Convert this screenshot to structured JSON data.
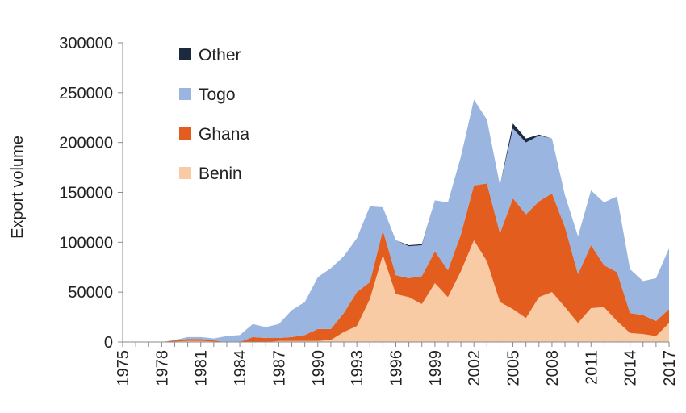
{
  "chart_data": {
    "type": "area",
    "stacked": true,
    "title": "",
    "xlabel": "",
    "ylabel": "Export volume",
    "ylim": [
      0,
      300000
    ],
    "yticks": [
      "0",
      "50000",
      "100000",
      "150000",
      "200000",
      "250000",
      "300000"
    ],
    "xticks": [
      "1975",
      "1978",
      "1981",
      "1984",
      "1987",
      "1990",
      "1993",
      "1996",
      "1999",
      "2002",
      "2005",
      "2008",
      "2011",
      "2014",
      "2017"
    ],
    "legend_position": "top-left",
    "x": [
      1975,
      1976,
      1977,
      1978,
      1979,
      1980,
      1981,
      1982,
      1983,
      1984,
      1985,
      1986,
      1987,
      1988,
      1989,
      1990,
      1991,
      1992,
      1993,
      1994,
      1995,
      1996,
      1997,
      1998,
      1999,
      2000,
      2001,
      2002,
      2003,
      2004,
      2005,
      2006,
      2007,
      2008,
      2009,
      2010,
      2011,
      2012,
      2013,
      2014,
      2015,
      2016,
      2017
    ],
    "series": [
      {
        "name": "Benin",
        "color": "#f9cba5",
        "values": [
          0,
          0,
          0,
          0,
          500,
          1000,
          1000,
          500,
          0,
          0,
          0,
          0,
          1000,
          1000,
          1000,
          1000,
          2000,
          10000,
          16000,
          43000,
          87000,
          48000,
          45000,
          38000,
          59000,
          45000,
          71000,
          102000,
          81000,
          40000,
          33000,
          24000,
          45000,
          50000,
          35000,
          19000,
          34000,
          35000,
          21000,
          9000,
          8000,
          6000,
          19000
        ]
      },
      {
        "name": "Ghana",
        "color": "#e35e1e",
        "values": [
          0,
          0,
          0,
          0,
          1000,
          2000,
          2000,
          1000,
          0,
          0,
          5000,
          4000,
          3000,
          4000,
          6000,
          12000,
          11000,
          19000,
          34000,
          17000,
          25000,
          19000,
          19000,
          28000,
          32000,
          27000,
          37000,
          55000,
          78000,
          69000,
          111000,
          104000,
          96000,
          99000,
          80000,
          49000,
          63000,
          42000,
          49000,
          20000,
          19000,
          15000,
          14000
        ]
      },
      {
        "name": "Togo",
        "color": "#9ab6e0",
        "values": [
          0,
          0,
          0,
          0,
          500,
          2000,
          2000,
          2000,
          6000,
          7000,
          13000,
          11000,
          14000,
          27000,
          33000,
          52000,
          61000,
          57000,
          54000,
          76000,
          23000,
          35000,
          32000,
          31000,
          51000,
          68000,
          78000,
          86000,
          64000,
          48000,
          70000,
          72000,
          66000,
          55000,
          32000,
          38000,
          55000,
          63000,
          76000,
          44000,
          34000,
          43000,
          61000
        ]
      },
      {
        "name": "Other",
        "color": "#1c2a3e",
        "values": [
          0,
          0,
          0,
          0,
          0,
          0,
          0,
          0,
          0,
          0,
          0,
          0,
          0,
          0,
          0,
          0,
          0,
          0,
          0,
          0,
          0,
          0,
          1000,
          1000,
          0,
          0,
          0,
          0,
          0,
          0,
          5000,
          4000,
          1000,
          0,
          0,
          0,
          0,
          0,
          0,
          0,
          0,
          0,
          0
        ]
      }
    ]
  }
}
